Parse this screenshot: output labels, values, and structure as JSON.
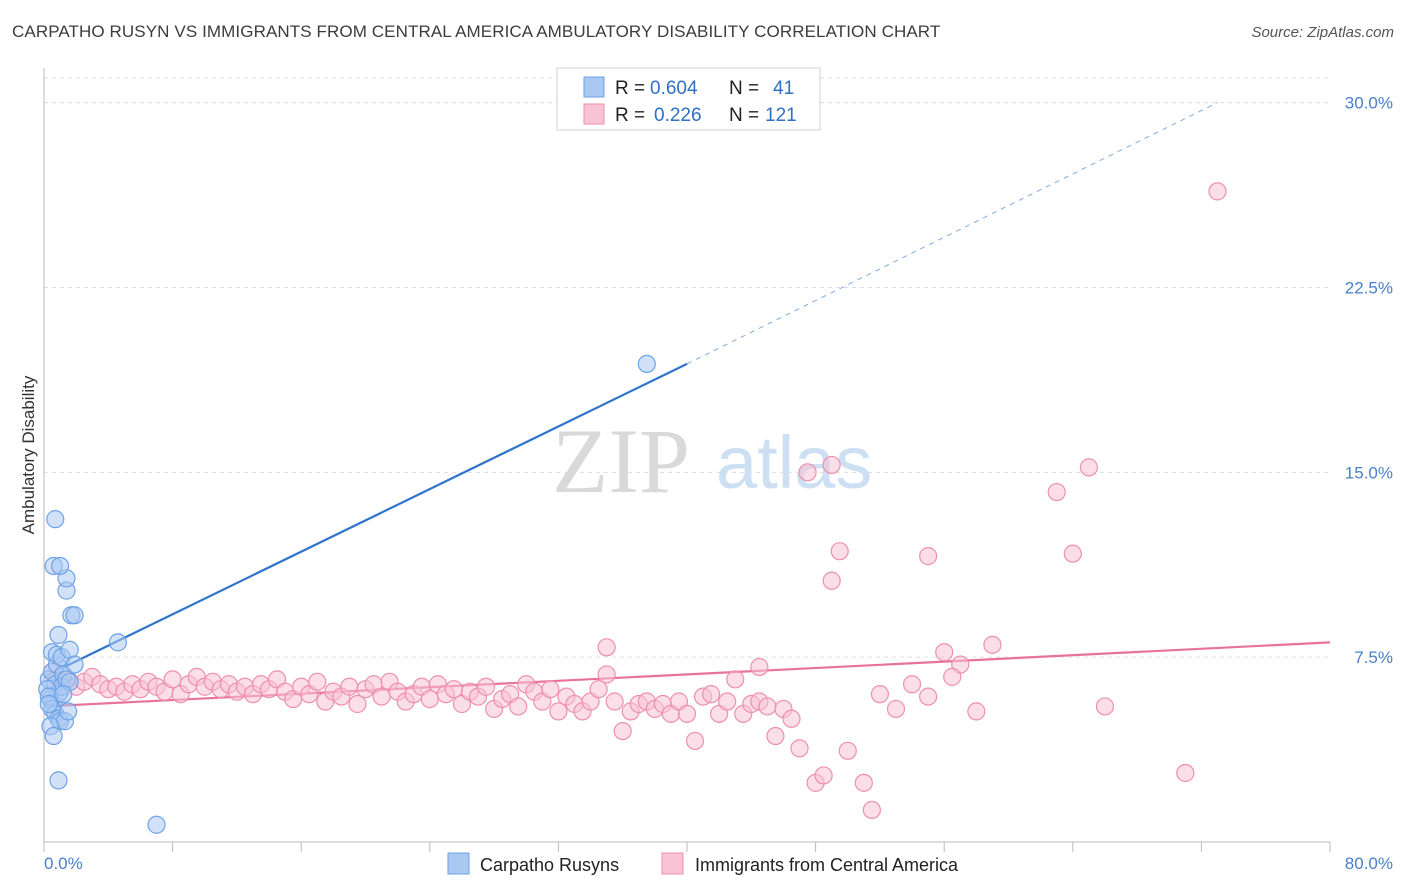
{
  "title": "CARPATHO RUSYN VS IMMIGRANTS FROM CENTRAL AMERICA AMBULATORY DISABILITY CORRELATION CHART",
  "source": "Source: ZipAtlas.com",
  "watermark": {
    "zip": "ZIP",
    "atlas": "atlas"
  },
  "colors": {
    "blue": "#6fa2e6",
    "blue_fill": "#a9c8f2",
    "blue_line": "#2f74cc",
    "pink": "#ef8fb0",
    "pink_fill": "#f7c3d5",
    "pink_line": "#e8729b",
    "tick_label": "#4a7fc9",
    "grid": "#dddddd"
  },
  "legend": {
    "rows": [
      {
        "r_label": "R =",
        "r_value": "0.604",
        "n_label": "N =",
        "n_value": "41"
      },
      {
        "r_label": "R =",
        "r_value": "0.226",
        "n_label": "N =",
        "n_value": "121"
      }
    ]
  },
  "chart_data": {
    "type": "scatter",
    "title": "CARPATHO RUSYN VS IMMIGRANTS FROM CENTRAL AMERICA AMBULATORY DISABILITY CORRELATION CHART",
    "xlabel": "",
    "ylabel": "Ambulatory Disability",
    "xlim": [
      0,
      80
    ],
    "ylim": [
      0,
      31
    ],
    "x_tick_labels": [
      "0.0%",
      "80.0%"
    ],
    "y_ticks": [
      7.5,
      15.0,
      22.5,
      30.0
    ],
    "y_tick_labels": [
      "7.5%",
      "15.0%",
      "22.5%",
      "30.0%"
    ],
    "grid": true,
    "legend_position": "top-center",
    "series": [
      {
        "name": "Carpatho Rusyns",
        "r": 0.604,
        "n": 41,
        "trend": {
          "x0": 0,
          "y0": 6.7,
          "x1": 40,
          "y1": 19.4,
          "dashed_to_x": 73,
          "dashed_to_y": 30.0
        },
        "points": [
          [
            0.3,
            6.6
          ],
          [
            0.5,
            6.9
          ],
          [
            0.7,
            6.4
          ],
          [
            0.8,
            7.2
          ],
          [
            1.0,
            6.1
          ],
          [
            1.2,
            6.8
          ],
          [
            0.4,
            5.8
          ],
          [
            0.6,
            5.6
          ],
          [
            0.9,
            6.0
          ],
          [
            1.1,
            6.3
          ],
          [
            1.4,
            6.6
          ],
          [
            1.6,
            6.5
          ],
          [
            0.2,
            6.2
          ],
          [
            0.3,
            5.9
          ],
          [
            0.5,
            5.4
          ],
          [
            0.7,
            5.2
          ],
          [
            0.9,
            5.0
          ],
          [
            1.0,
            4.9
          ],
          [
            1.3,
            4.9
          ],
          [
            0.4,
            4.7
          ],
          [
            0.6,
            4.3
          ],
          [
            1.5,
            5.3
          ],
          [
            0.5,
            7.7
          ],
          [
            0.8,
            7.6
          ],
          [
            1.1,
            7.5
          ],
          [
            1.6,
            7.8
          ],
          [
            0.9,
            8.4
          ],
          [
            1.7,
            9.2
          ],
          [
            1.9,
            9.2
          ],
          [
            1.4,
            10.2
          ],
          [
            1.4,
            10.7
          ],
          [
            0.6,
            11.2
          ],
          [
            1.0,
            11.2
          ],
          [
            0.7,
            13.1
          ],
          [
            4.6,
            8.1
          ],
          [
            1.9,
            7.2
          ],
          [
            0.9,
            2.5
          ],
          [
            7.0,
            0.7
          ],
          [
            37.5,
            19.4
          ],
          [
            1.2,
            6.0
          ],
          [
            0.3,
            5.6
          ]
        ]
      },
      {
        "name": "Immigrants from Central America",
        "r": 0.226,
        "n": 121,
        "trend": {
          "x0": 0,
          "y0": 5.5,
          "x1": 80,
          "y1": 8.1
        },
        "points": [
          [
            0.5,
            6.9
          ],
          [
            1.0,
            6.5
          ],
          [
            1.5,
            6.6
          ],
          [
            2.0,
            6.3
          ],
          [
            2.5,
            6.5
          ],
          [
            3.0,
            6.7
          ],
          [
            3.5,
            6.4
          ],
          [
            4.0,
            6.2
          ],
          [
            4.5,
            6.3
          ],
          [
            5.0,
            6.1
          ],
          [
            5.5,
            6.4
          ],
          [
            6.0,
            6.2
          ],
          [
            6.5,
            6.5
          ],
          [
            7.0,
            6.3
          ],
          [
            7.5,
            6.1
          ],
          [
            8.0,
            6.6
          ],
          [
            8.5,
            6.0
          ],
          [
            9.0,
            6.4
          ],
          [
            9.5,
            6.7
          ],
          [
            10.0,
            6.3
          ],
          [
            10.5,
            6.5
          ],
          [
            11.0,
            6.2
          ],
          [
            11.5,
            6.4
          ],
          [
            12.0,
            6.1
          ],
          [
            12.5,
            6.3
          ],
          [
            13.0,
            6.0
          ],
          [
            13.5,
            6.4
          ],
          [
            14.0,
            6.2
          ],
          [
            14.5,
            6.6
          ],
          [
            15.0,
            6.1
          ],
          [
            15.5,
            5.8
          ],
          [
            16.0,
            6.3
          ],
          [
            16.5,
            6.0
          ],
          [
            17.0,
            6.5
          ],
          [
            17.5,
            5.7
          ],
          [
            18.0,
            6.1
          ],
          [
            18.5,
            5.9
          ],
          [
            19.0,
            6.3
          ],
          [
            19.5,
            5.6
          ],
          [
            20.0,
            6.2
          ],
          [
            20.5,
            6.4
          ],
          [
            21.0,
            5.9
          ],
          [
            21.5,
            6.5
          ],
          [
            22.0,
            6.1
          ],
          [
            22.5,
            5.7
          ],
          [
            23.0,
            6.0
          ],
          [
            23.5,
            6.3
          ],
          [
            24.0,
            5.8
          ],
          [
            24.5,
            6.4
          ],
          [
            25.0,
            6.0
          ],
          [
            25.5,
            6.2
          ],
          [
            26.0,
            5.6
          ],
          [
            26.5,
            6.1
          ],
          [
            27.0,
            5.9
          ],
          [
            27.5,
            6.3
          ],
          [
            28.0,
            5.4
          ],
          [
            28.5,
            5.8
          ],
          [
            29.0,
            6.0
          ],
          [
            29.5,
            5.5
          ],
          [
            30.0,
            6.4
          ],
          [
            30.5,
            6.1
          ],
          [
            31.0,
            5.7
          ],
          [
            31.5,
            6.2
          ],
          [
            32.0,
            5.3
          ],
          [
            32.5,
            5.9
          ],
          [
            33.0,
            5.6
          ],
          [
            33.5,
            5.3
          ],
          [
            34.0,
            5.7
          ],
          [
            34.5,
            6.2
          ],
          [
            35.0,
            6.8
          ],
          [
            35.5,
            5.7
          ],
          [
            36.0,
            4.5
          ],
          [
            36.5,
            5.3
          ],
          [
            37.0,
            5.6
          ],
          [
            37.5,
            5.7
          ],
          [
            38.0,
            5.4
          ],
          [
            38.5,
            5.6
          ],
          [
            39.0,
            5.2
          ],
          [
            39.5,
            5.7
          ],
          [
            40.0,
            5.2
          ],
          [
            40.5,
            4.1
          ],
          [
            41.0,
            5.9
          ],
          [
            41.5,
            6.0
          ],
          [
            42.0,
            5.2
          ],
          [
            42.5,
            5.7
          ],
          [
            43.0,
            6.6
          ],
          [
            43.5,
            5.2
          ],
          [
            44.0,
            5.6
          ],
          [
            44.5,
            5.7
          ],
          [
            45.0,
            5.5
          ],
          [
            45.5,
            4.3
          ],
          [
            46.0,
            5.4
          ],
          [
            46.5,
            5.0
          ],
          [
            47.0,
            3.8
          ],
          [
            47.5,
            15.0
          ],
          [
            48.0,
            2.4
          ],
          [
            48.5,
            2.7
          ],
          [
            49.0,
            15.3
          ],
          [
            49.5,
            11.8
          ],
          [
            50.0,
            3.7
          ],
          [
            51.0,
            2.4
          ],
          [
            51.5,
            1.3
          ],
          [
            52.0,
            6.0
          ],
          [
            53.0,
            5.4
          ],
          [
            54.0,
            6.4
          ],
          [
            55.0,
            5.9
          ],
          [
            56.0,
            7.7
          ],
          [
            57.0,
            7.2
          ],
          [
            58.0,
            5.3
          ],
          [
            59.0,
            8.0
          ],
          [
            63.0,
            14.2
          ],
          [
            64.0,
            11.7
          ],
          [
            65.0,
            15.2
          ],
          [
            66.0,
            5.5
          ],
          [
            71.0,
            2.8
          ],
          [
            73.0,
            26.4
          ],
          [
            56.5,
            6.7
          ],
          [
            49.0,
            10.6
          ],
          [
            55.0,
            11.6
          ],
          [
            44.5,
            7.1
          ],
          [
            35.0,
            7.9
          ]
        ]
      }
    ]
  },
  "bottom_legend": [
    {
      "label": "Carpatho Rusyns"
    },
    {
      "label": "Immigrants from Central America"
    }
  ]
}
